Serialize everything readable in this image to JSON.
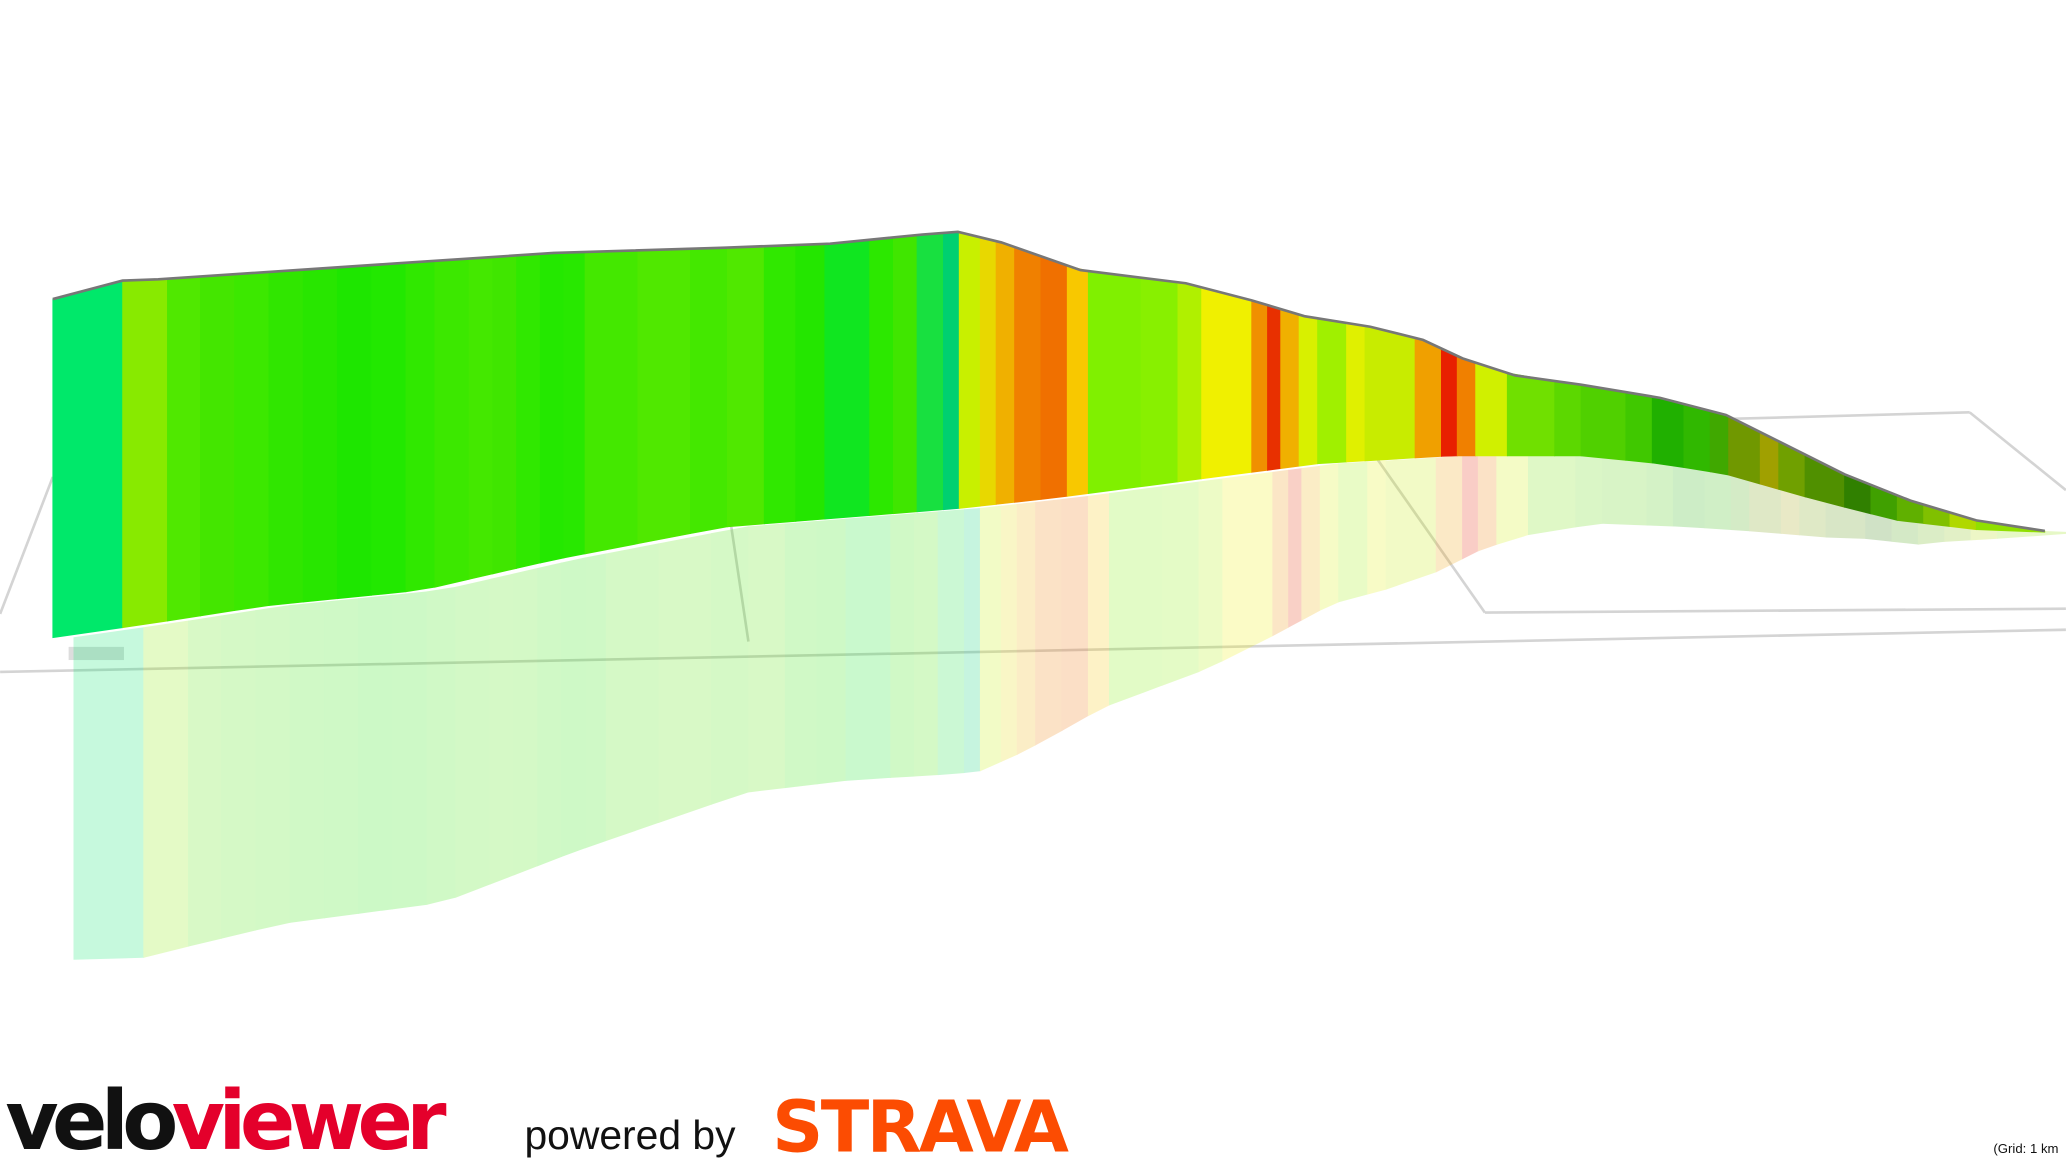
{
  "logo": {
    "velo": "velo",
    "viewer": "viewer"
  },
  "powered_by": "powered by",
  "strava": "STRAVA",
  "grid_note": "(Grid: 1 km"
}
